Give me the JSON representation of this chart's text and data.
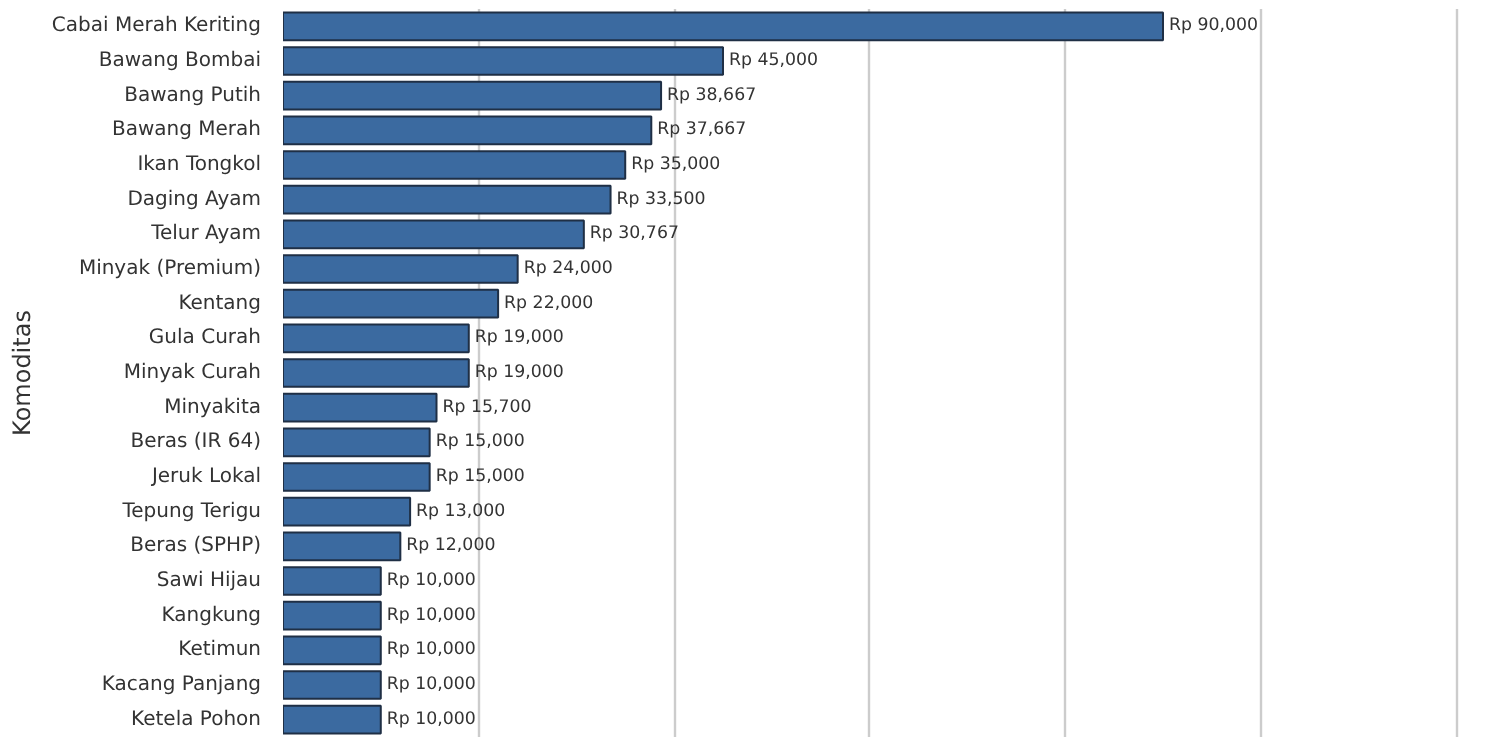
{
  "chart_data": {
    "type": "bar",
    "orientation": "horizontal",
    "ylabel": "Komoditas",
    "categories": [
      "Cabai Merah Keriting",
      "Bawang Bombai",
      "Bawang Putih",
      "Bawang Merah",
      "Ikan Tongkol",
      "Daging Ayam",
      "Telur Ayam",
      "Minyak (Premium)",
      "Kentang",
      "Gula Curah",
      "Minyak Curah",
      "Minyakita",
      "Beras (IR 64)",
      "Jeruk Lokal",
      "Tepung Terigu",
      "Beras (SPHP)",
      "Sawi Hijau",
      "Kangkung",
      "Ketimun",
      "Kacang Panjang",
      "Ketela Pohon"
    ],
    "values": [
      90000,
      45000,
      38667,
      37667,
      35000,
      33500,
      30767,
      24000,
      22000,
      19000,
      19000,
      15700,
      15000,
      15000,
      13000,
      12000,
      10000,
      10000,
      10000,
      10000,
      10000
    ],
    "value_labels": [
      "Rp 90,000",
      "Rp 45,000",
      "Rp 38,667",
      "Rp 37,667",
      "Rp 35,000",
      "Rp 33,500",
      "Rp 30,767",
      "Rp 24,000",
      "Rp 22,000",
      "Rp 19,000",
      "Rp 19,000",
      "Rp 15,700",
      "Rp 15,000",
      "Rp 15,000",
      "Rp 13,000",
      "Rp 12,000",
      "Rp 10,000",
      "Rp 10,000",
      "Rp 10,000",
      "Rp 10,000",
      "Rp 10,000"
    ],
    "color": "#3b6aa0",
    "tick_labels": "y",
    "grid": "x"
  }
}
